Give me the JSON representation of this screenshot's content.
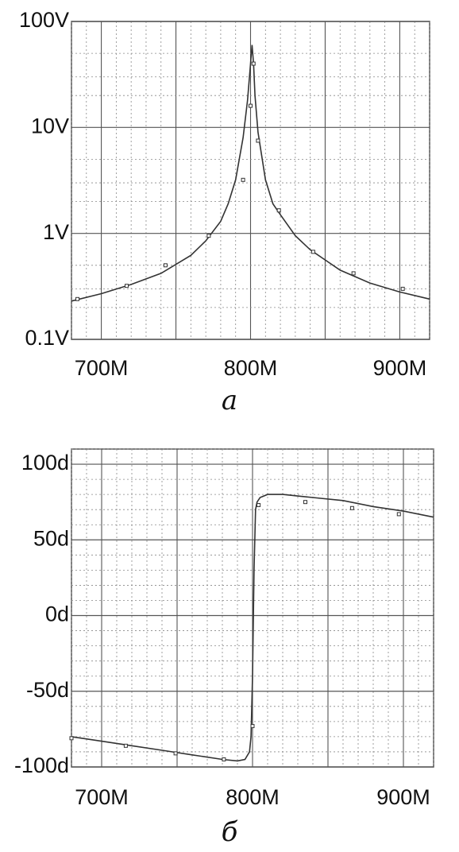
{
  "chart_data": [
    {
      "panel": "a",
      "type": "line",
      "caption": "а",
      "x_scale": "linear",
      "y_scale": "log",
      "xlim": [
        680,
        920
      ],
      "ylim": [
        0.1,
        100
      ],
      "grid": true,
      "x_ticks": [
        {
          "value": 700,
          "label": "700M"
        },
        {
          "value": 800,
          "label": "800M"
        },
        {
          "value": 900,
          "label": "900M"
        }
      ],
      "y_ticks": [
        {
          "value": 100,
          "label": "100V"
        },
        {
          "value": 10,
          "label": "10V"
        },
        {
          "value": 1,
          "label": "1V"
        },
        {
          "value": 0.1,
          "label": "0.1V"
        }
      ],
      "series": [
        {
          "x": [
            680,
            700,
            720,
            740,
            760,
            770,
            780,
            785,
            790,
            795,
            798,
            800,
            801,
            802,
            803,
            805,
            810,
            815,
            820,
            830,
            840,
            860,
            880,
            900,
            920
          ],
          "y": [
            0.23,
            0.27,
            0.33,
            0.42,
            0.62,
            0.85,
            1.3,
            1.9,
            3.2,
            8.0,
            18,
            40,
            60,
            40,
            20,
            9,
            3.2,
            1.9,
            1.5,
            0.95,
            0.7,
            0.45,
            0.34,
            0.28,
            0.24
          ]
        }
      ],
      "markers": {
        "x": [
          684,
          717,
          743,
          772,
          795,
          800,
          802,
          805,
          819,
          842,
          869,
          902
        ],
        "y": [
          0.24,
          0.32,
          0.5,
          0.95,
          3.2,
          16,
          40,
          7.5,
          1.65,
          0.67,
          0.42,
          0.3
        ]
      }
    },
    {
      "panel": "b",
      "type": "line",
      "caption": "б",
      "x_scale": "linear",
      "y_scale": "linear",
      "xlim": [
        680,
        920
      ],
      "ylim": [
        -100,
        110
      ],
      "grid": true,
      "x_ticks": [
        {
          "value": 700,
          "label": "700M"
        },
        {
          "value": 800,
          "label": "800M"
        },
        {
          "value": 900,
          "label": "900M"
        }
      ],
      "y_ticks": [
        {
          "value": 100,
          "label": "100d"
        },
        {
          "value": 50,
          "label": "50d"
        },
        {
          "value": 0,
          "label": "0d"
        },
        {
          "value": -50,
          "label": "-50d"
        },
        {
          "value": -100,
          "label": "-100d"
        }
      ],
      "series": [
        {
          "x": [
            680,
            700,
            720,
            740,
            760,
            780,
            790,
            795,
            798,
            799,
            800,
            801,
            802,
            803,
            805,
            810,
            820,
            840,
            860,
            880,
            900,
            920
          ],
          "y": [
            -80,
            -83,
            -86,
            -89,
            -92,
            -95,
            -96,
            -95,
            -90,
            -80,
            -40,
            30,
            70,
            75,
            78,
            80,
            80,
            78,
            76,
            72,
            69,
            65
          ]
        }
      ],
      "markers": {
        "x": [
          680,
          716,
          749,
          781,
          800,
          804,
          835,
          866,
          897
        ],
        "y": [
          -81,
          -86,
          -91,
          -95,
          -73,
          73,
          75,
          71,
          67
        ]
      }
    }
  ]
}
